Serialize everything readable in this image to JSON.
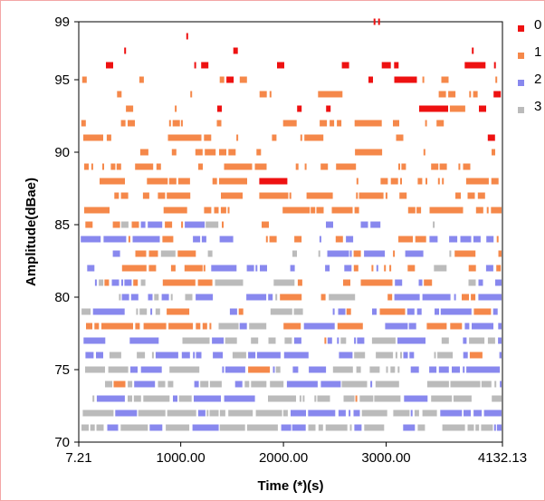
{
  "chart_data": {
    "type": "heatmap",
    "title": "",
    "xlabel": "Time (*)(s)",
    "ylabel": "Amplitude(dBae)",
    "xlim": [
      7.21,
      4132.13
    ],
    "ylim": [
      70,
      99
    ],
    "x_tick_labels": [
      "7.21",
      "1000.00",
      "2000.00",
      "3000.00",
      "4132.13"
    ],
    "x_tick_values": [
      7.21,
      1000,
      2000,
      3000,
      4132.13
    ],
    "y_tick_labels": [
      "70",
      "75",
      "80",
      "85",
      "90",
      "95",
      "99"
    ],
    "y_tick_values": [
      70,
      75,
      80,
      85,
      90,
      95,
      99
    ],
    "legend": [
      {
        "name": "0",
        "color": "#ee1111"
      },
      {
        "name": "1",
        "color": "#f5884a"
      },
      {
        "name": "2",
        "color": "#8888ee"
      },
      {
        "name": "3",
        "color": "#bbbbbb"
      }
    ],
    "amplitude_levels": [
      99,
      98,
      97,
      96,
      95,
      94,
      93,
      92,
      91,
      90,
      89,
      88,
      87,
      86,
      85,
      84,
      83,
      82,
      81,
      80,
      79,
      78,
      77,
      76,
      75,
      74,
      73,
      72,
      71
    ],
    "series": [
      {
        "name": "0",
        "amplitude_range": [
          93,
          99
        ],
        "time_range": [
          7.21,
          4132.13
        ]
      },
      {
        "name": "1",
        "amplitude_range": [
          78,
          95
        ],
        "time_range": [
          7.21,
          4132.13
        ]
      },
      {
        "name": "2",
        "amplitude_range": [
          71,
          86
        ],
        "time_range": [
          7.21,
          4132.13
        ]
      },
      {
        "name": "3",
        "amplitude_range": [
          70,
          81
        ],
        "time_range": [
          7.21,
          4132.13
        ]
      }
    ],
    "grid": false,
    "legend_position": "top-right"
  }
}
